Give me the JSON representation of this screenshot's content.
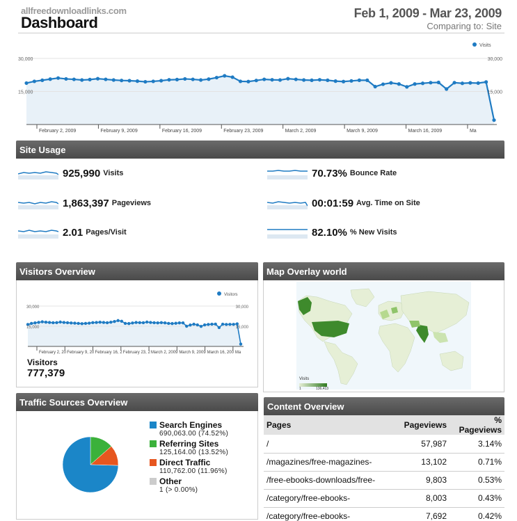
{
  "header": {
    "site_name": "allfreedownloadlinks.com",
    "title": "Dashboard",
    "date_range": "Feb 1, 2009 - Mar 23, 2009",
    "comparing": "Comparing to: Site"
  },
  "colors": {
    "line": "#1f7bc3",
    "fill": "#e8f1f8",
    "header_bar": "#555555"
  },
  "chart_data": [
    {
      "type": "area",
      "legend": "Visits",
      "legend_position": "top-right",
      "y_ticks": [
        "30,000",
        "15,000"
      ],
      "ylim": [
        0,
        30000
      ],
      "x_labels": [
        "February 2, 2009",
        "February 9, 2009",
        "February 16, 2009",
        "February 23, 2009",
        "March 2, 2009",
        "March 9, 2009",
        "March 16, 2009",
        "Ma"
      ],
      "values": [
        18800,
        19600,
        20100,
        20600,
        21100,
        20700,
        20500,
        20200,
        20400,
        20800,
        20500,
        20200,
        20000,
        19900,
        19700,
        19400,
        19600,
        19900,
        20300,
        20400,
        20700,
        20500,
        20200,
        20600,
        21300,
        22100,
        21500,
        19600,
        19500,
        20000,
        20500,
        20300,
        20200,
        20800,
        20500,
        20200,
        20100,
        20300,
        20100,
        19700,
        19500,
        19800,
        20100,
        20100,
        17200,
        18300,
        18900,
        18400,
        17100,
        18400,
        18700,
        19000,
        19100,
        16100,
        19000,
        18700,
        18900,
        18800,
        19300,
        2000
      ]
    },
    {
      "type": "area",
      "legend": "Visitors",
      "legend_position": "top-right",
      "y_ticks": [
        "30,000",
        "15,000"
      ],
      "ylim": [
        0,
        30000
      ],
      "x_labels": [
        "February 2, 20",
        "February 9, 20",
        "February 16, 2",
        "February 23, 2",
        "March 2, 2009",
        "March 9, 2009",
        "March 16, 200",
        "Ma"
      ],
      "values": [
        16300,
        17100,
        17500,
        17900,
        18300,
        18000,
        17800,
        17600,
        17700,
        18100,
        17800,
        17600,
        17400,
        17300,
        17100,
        16900,
        17100,
        17300,
        17700,
        17800,
        18000,
        17800,
        17600,
        18000,
        18500,
        19200,
        18700,
        17100,
        17000,
        17400,
        17800,
        17700,
        17600,
        18100,
        17800,
        17600,
        17500,
        17700,
        17500,
        17100,
        17000,
        17200,
        17500,
        17500,
        15000,
        15900,
        16500,
        16000,
        14900,
        16000,
        16300,
        16500,
        16600,
        14000,
        16500,
        16300,
        16400,
        16400,
        16800,
        1700
      ]
    },
    {
      "type": "pie",
      "slices": [
        {
          "label": "Search Engines",
          "value": 690063,
          "percent": 74.52,
          "color": "#1b86c8"
        },
        {
          "label": "Referring Sites",
          "value": 125164,
          "percent": 13.52,
          "color": "#3bb13b"
        },
        {
          "label": "Direct Traffic",
          "value": 110762,
          "percent": 11.96,
          "color": "#e6561f"
        },
        {
          "label": "Other",
          "value": 1,
          "percent": 0.0,
          "color": "#cccccc"
        }
      ]
    }
  ],
  "site_usage": {
    "title": "Site Usage",
    "metrics": [
      {
        "value": "925,990",
        "label": "Visits"
      },
      {
        "value": "1,863,397",
        "label": "Pageviews"
      },
      {
        "value": "2.01",
        "label": "Pages/Visit"
      },
      {
        "value": "70.73%",
        "label": "Bounce Rate"
      },
      {
        "value": "00:01:59",
        "label": "Avg. Time on Site"
      },
      {
        "value": "82.10%",
        "label": "% New Visits"
      }
    ]
  },
  "visitors_overview": {
    "title": "Visitors Overview",
    "label": "Visitors",
    "value": "777,379"
  },
  "map_overlay": {
    "title": "Map Overlay world",
    "scale_label": "Visits",
    "scale_min": "1",
    "scale_max": "136,413"
  },
  "traffic_sources": {
    "title": "Traffic Sources Overview",
    "items": [
      {
        "label": "Search Engines",
        "detail": "690,063.00 (74.52%)"
      },
      {
        "label": "Referring Sites",
        "detail": "125,164.00 (13.52%)"
      },
      {
        "label": "Direct Traffic",
        "detail": "110,762.00 (11.96%)"
      },
      {
        "label": "Other",
        "detail": "1 (> 0.00%)"
      }
    ]
  },
  "content_overview": {
    "title": "Content Overview",
    "columns": [
      "Pages",
      "Pageviews",
      "% Pageviews"
    ],
    "rows": [
      [
        "/",
        "57,987",
        "3.14%"
      ],
      [
        "/magazines/free-magazines-",
        "13,102",
        "0.71%"
      ],
      [
        "/free-ebooks-downloads/free-",
        "9,803",
        "0.53%"
      ],
      [
        "/category/free-ebooks-",
        "8,003",
        "0.43%"
      ],
      [
        "/category/free-ebooks-",
        "7,692",
        "0.42%"
      ]
    ]
  }
}
